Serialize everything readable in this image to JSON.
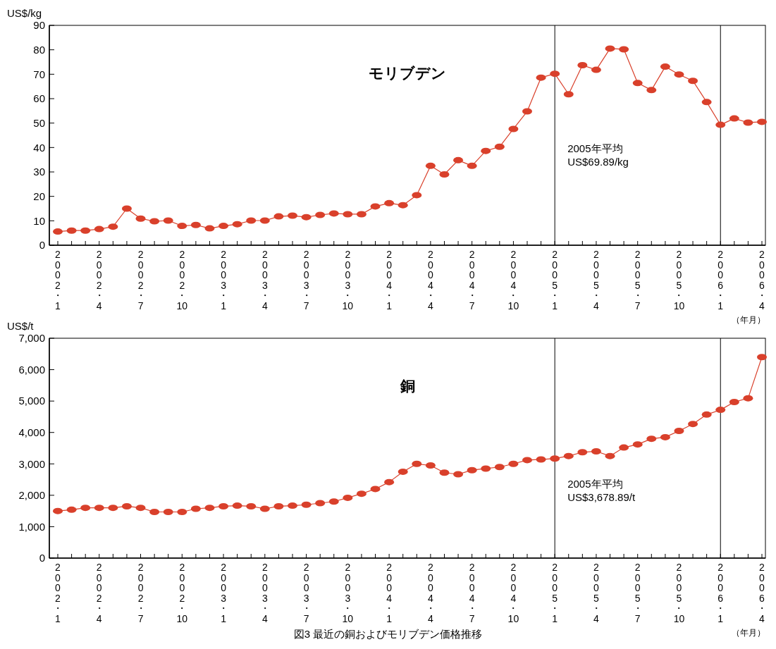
{
  "chart_data": [
    {
      "type": "line",
      "title": "モリブデン",
      "ylabel": "US$/kg",
      "xlabel": "（年月）",
      "categories": [
        "2002・1",
        null,
        null,
        "2002・4",
        null,
        null,
        "2002・7",
        null,
        null,
        "2002・10",
        null,
        null,
        "2003・1",
        null,
        null,
        "2003・4",
        null,
        null,
        "2003・7",
        null,
        null,
        "2003・10",
        null,
        null,
        "2004・1",
        null,
        null,
        "2004・4",
        null,
        null,
        "2004・7",
        null,
        null,
        "2004・10",
        null,
        null,
        "2005・1",
        null,
        null,
        "2005・4",
        null,
        null,
        "2005・7",
        null,
        null,
        "2005・10",
        null,
        null,
        "2006・1",
        null,
        null,
        "2006・4"
      ],
      "series": [
        {
          "color": "#d9402b",
          "values": [
            5.6,
            6.0,
            6.0,
            6.6,
            7.6,
            15.0,
            10.9,
            9.8,
            10.1,
            7.9,
            8.3,
            6.9,
            7.9,
            8.6,
            10.1,
            10.1,
            11.8,
            12.1,
            11.5,
            12.4,
            13.0,
            12.7,
            12.7,
            15.9,
            17.2,
            16.4,
            20.5,
            32.5,
            29.0,
            34.8,
            32.5,
            38.6,
            40.3,
            47.6,
            54.8,
            68.6,
            70.2,
            61.8,
            73.7,
            71.8,
            80.5,
            80.2,
            66.4,
            63.5,
            73.1,
            69.9,
            67.3,
            58.6,
            49.3,
            51.9,
            50.2,
            50.5
          ]
        }
      ],
      "ylim": [
        0,
        90
      ],
      "yticks": [
        0,
        10,
        20,
        30,
        40,
        50,
        60,
        70,
        80,
        90
      ],
      "marker": "circle",
      "line_style": "solid",
      "ref_lines": [
        {
          "axis": "x",
          "value": "2005・1",
          "color": "#000000"
        },
        {
          "axis": "x",
          "value": "2006・1",
          "color": "#000000"
        }
      ],
      "annotations": [
        {
          "text": "2005年平均\nUS$69.89/kg",
          "x": "2005・1",
          "y": 38
        }
      ]
    },
    {
      "type": "line",
      "title": "銅",
      "ylabel": "US$/t",
      "xlabel": "（年月）",
      "categories": [
        "2002・1",
        null,
        null,
        "2002・4",
        null,
        null,
        "2002・7",
        null,
        null,
        "2002・10",
        null,
        null,
        "2003・1",
        null,
        null,
        "2003・4",
        null,
        null,
        "2003・7",
        null,
        null,
        "2003・10",
        null,
        null,
        "2004・1",
        null,
        null,
        "2004・4",
        null,
        null,
        "2004・7",
        null,
        null,
        "2004・10",
        null,
        null,
        "2005・1",
        null,
        null,
        "2005・4",
        null,
        null,
        "2005・7",
        null,
        null,
        "2005・10",
        null,
        null,
        "2006・1",
        null,
        null,
        "2006・4"
      ],
      "series": [
        {
          "color": "#d9402b",
          "values": [
            1500,
            1540,
            1600,
            1600,
            1600,
            1650,
            1600,
            1470,
            1470,
            1470,
            1570,
            1600,
            1650,
            1670,
            1650,
            1570,
            1650,
            1670,
            1700,
            1750,
            1800,
            1920,
            2050,
            2200,
            2420,
            2750,
            3000,
            2950,
            2720,
            2670,
            2800,
            2850,
            2900,
            3000,
            3120,
            3140,
            3170,
            3250,
            3370,
            3400,
            3250,
            3520,
            3620,
            3800,
            3850,
            4050,
            4270,
            4570,
            4720,
            4970,
            5090,
            6400
          ]
        }
      ],
      "ylim": [
        0,
        7000
      ],
      "yticks": [
        0,
        {
          "value": 1000,
          "label": "1,000"
        },
        {
          "value": 2000,
          "label": "2,000"
        },
        {
          "value": 3000,
          "label": "3,000"
        },
        {
          "value": 4000,
          "label": "4,000"
        },
        {
          "value": 5000,
          "label": "5,000"
        },
        {
          "value": 6000,
          "label": "6,000"
        },
        {
          "value": 7000,
          "label": "7,000"
        }
      ],
      "marker": "circle",
      "line_style": "solid",
      "ref_lines": [
        {
          "axis": "x",
          "value": "2005・1",
          "color": "#000000"
        },
        {
          "axis": "x",
          "value": "2006・1",
          "color": "#000000"
        }
      ],
      "annotations": [
        {
          "text": "2005年平均\nUS$3,678.89/t",
          "x": "2005・1",
          "y": 2250
        },
        "図3 最近の銅およびモリブデン価格推移"
      ]
    }
  ]
}
